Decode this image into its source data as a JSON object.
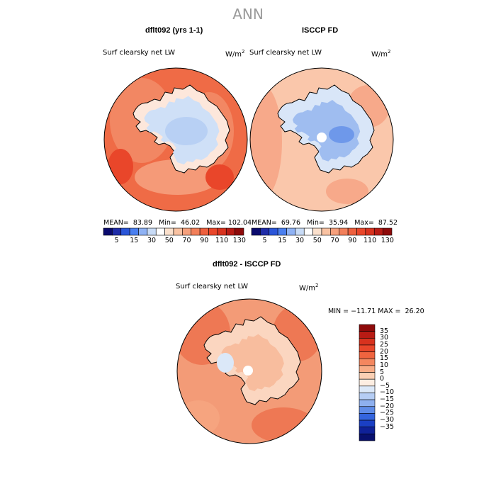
{
  "title": "ANN",
  "panels": [
    {
      "title": "dflt092 (yrs 1-1)",
      "variable": "Surf clearsky net LW",
      "units": "W/m",
      "units_exp": "2",
      "stats": {
        "mean_label": "MEAN=",
        "mean": "83.89",
        "min_label": "Min=",
        "min": "46.02",
        "max_label": "Max=",
        "max": "102.04"
      }
    },
    {
      "title": "ISCCP FD",
      "variable": "Surf clearsky net LW",
      "units": "W/m",
      "units_exp": "2",
      "stats": {
        "mean_label": "MEAN=",
        "mean": "69.76",
        "min_label": "Min=",
        "min": "35.94",
        "max_label": "Max=",
        "max": "87.52"
      }
    },
    {
      "title": "dflt092 - ISCCP FD",
      "variable": "Surf clearsky net LW",
      "units": "W/m",
      "units_exp": "2",
      "minmax": "MIN = −11.71 MAX =  26.20"
    }
  ],
  "colorbar_top": {
    "ticks": [
      "5",
      "15",
      "30",
      "50",
      "70",
      "90",
      "110",
      "130"
    ],
    "colors": [
      "#0a0a6e",
      "#1f2ca8",
      "#2a55d8",
      "#4a7ff0",
      "#8fb2f4",
      "#c8dbf6",
      "#ffffff",
      "#fbe0cc",
      "#f9c2a2",
      "#f6a07c",
      "#f27f5a",
      "#ee603e",
      "#e9462a",
      "#d8321e",
      "#b81b14",
      "#8e0a0a"
    ]
  },
  "colorbar_diff": {
    "ticks": [
      "35",
      "30",
      "25",
      "20",
      "15",
      "10",
      "5",
      "0",
      "−5",
      "−10",
      "−15",
      "−20",
      "−25",
      "−30",
      "−35"
    ],
    "colors": [
      "#8e0a0a",
      "#b81b14",
      "#d8321e",
      "#e9462a",
      "#f0643f",
      "#f4875f",
      "#f8ac86",
      "#fbd0b4",
      "#fdeee2",
      "#dbe8f8",
      "#b5cdf4",
      "#8eb0ef",
      "#5f8ce8",
      "#3465de",
      "#1a3fc4",
      "#0f2198",
      "#08106e"
    ]
  },
  "map_colors": {
    "ocean_a": "#ef6b46",
    "ocean_a2": "#f28763",
    "land_a": "#cfe0f7",
    "ocean_b": "#fac7ab",
    "ocean_b2": "#f7a98a",
    "land_b": "#b8d0f4",
    "ocean_c": "#f39b77",
    "ocean_c2": "#ee7854",
    "land_c": "#fbd6c0"
  }
}
